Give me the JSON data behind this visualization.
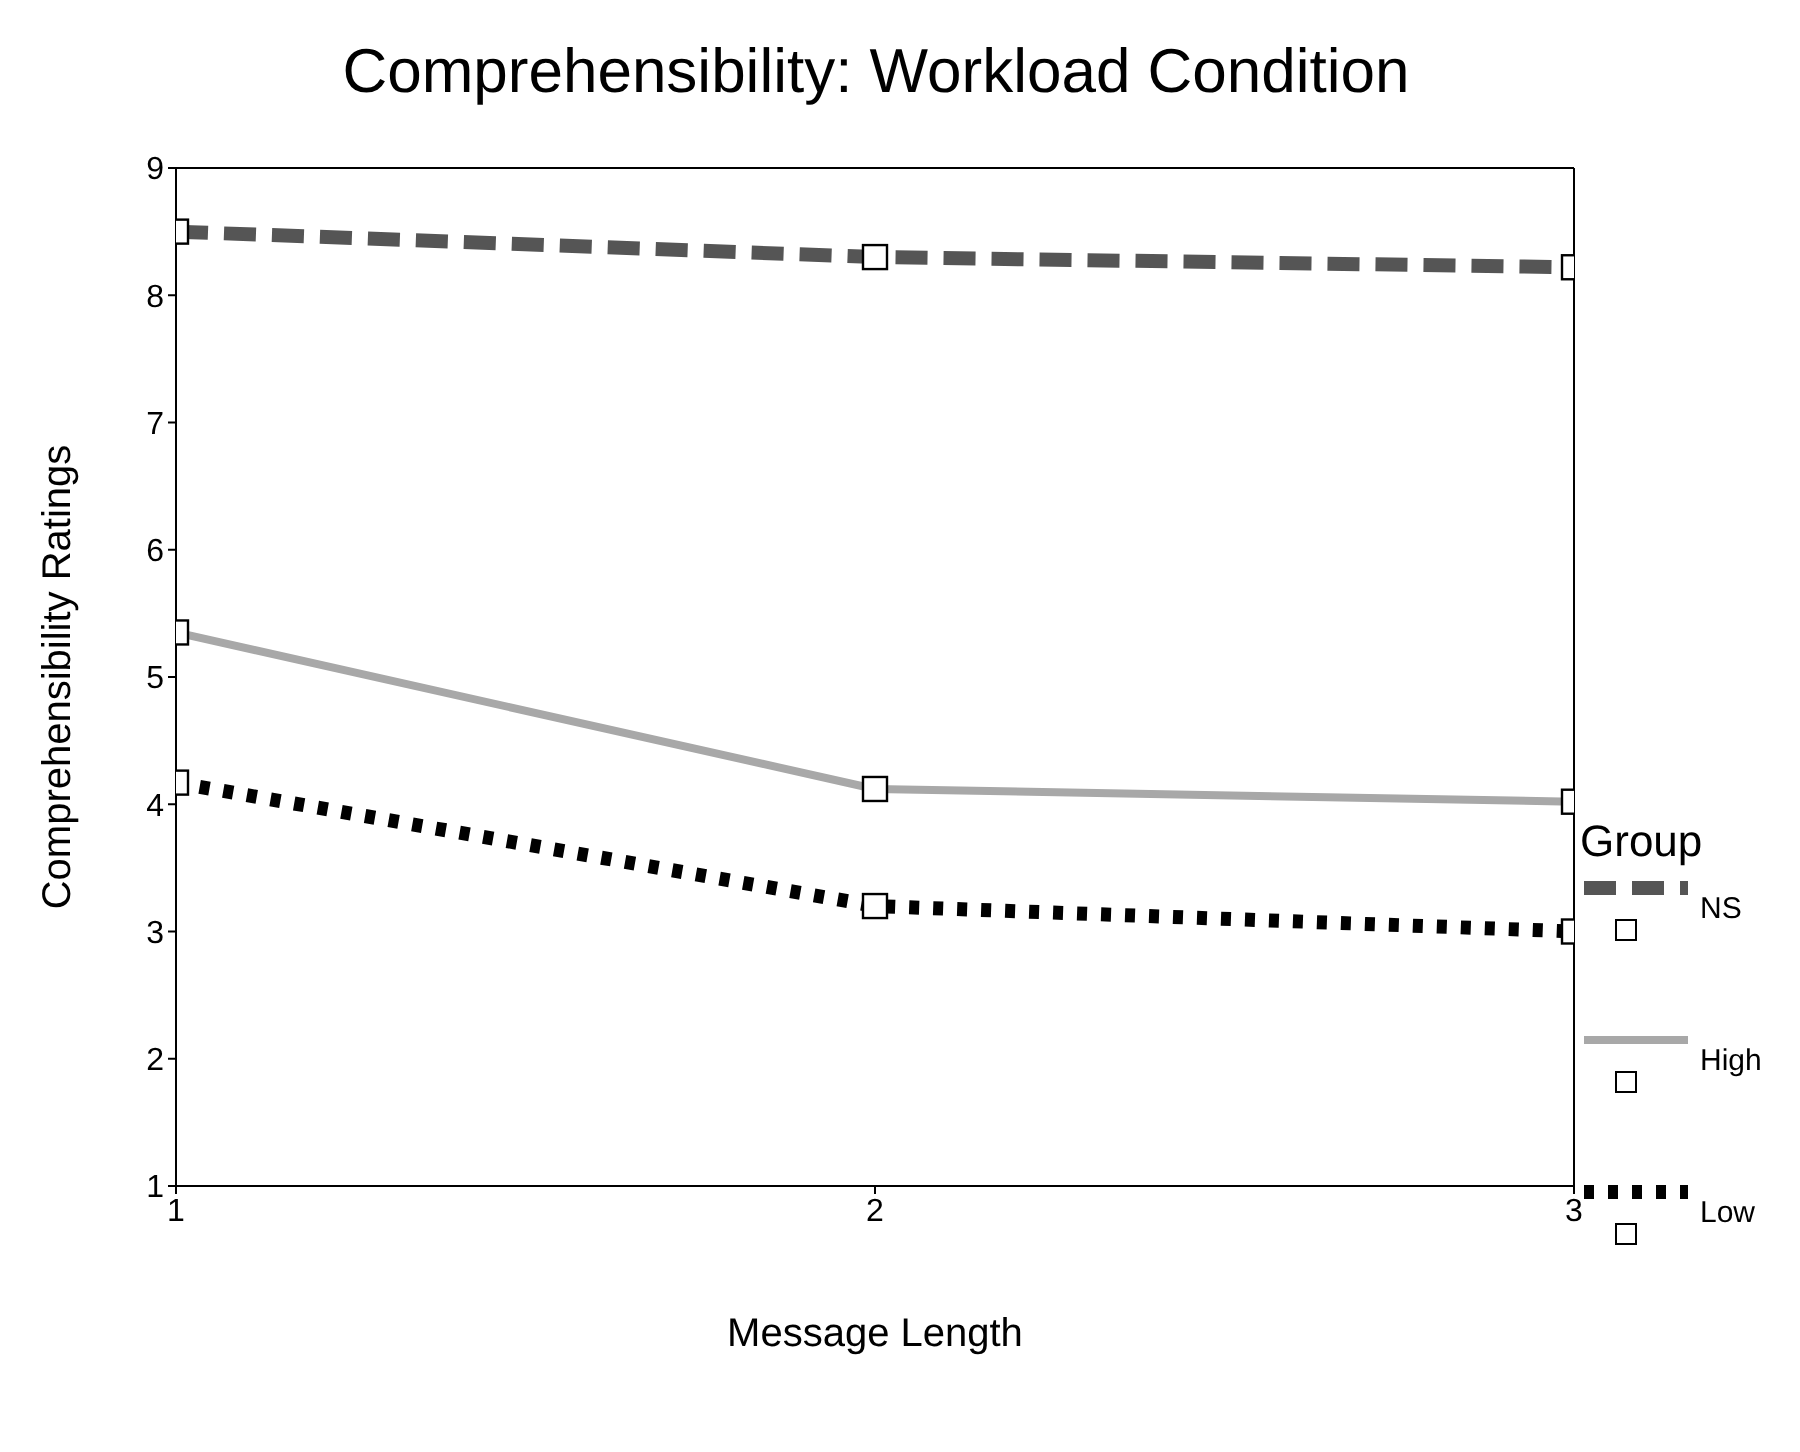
{
  "chart_data": {
    "type": "line",
    "title": "Comprehensibility: Workload Condition",
    "xlabel": "Message Length",
    "ylabel": "Comprehensibility Ratings",
    "legend_title": "Group",
    "x": [
      1,
      2,
      3
    ],
    "xlim": [
      1,
      3
    ],
    "xticks": [
      1,
      2,
      3
    ],
    "ylim": [
      1,
      9
    ],
    "yticks": [
      1,
      2,
      3,
      4,
      5,
      6,
      7,
      8,
      9
    ],
    "grid": false,
    "legend": "right",
    "marker": "square",
    "series": [
      {
        "name": "NS",
        "color": "#555555",
        "line_style": "dashed",
        "values": [
          8.5,
          8.3,
          8.22
        ]
      },
      {
        "name": "High",
        "color": "#a8a8a8",
        "line_style": "solid",
        "values": [
          5.35,
          4.12,
          4.02
        ]
      },
      {
        "name": "Low",
        "color": "#000000",
        "line_style": "dotted",
        "values": [
          4.17,
          3.2,
          3.0
        ]
      }
    ]
  }
}
